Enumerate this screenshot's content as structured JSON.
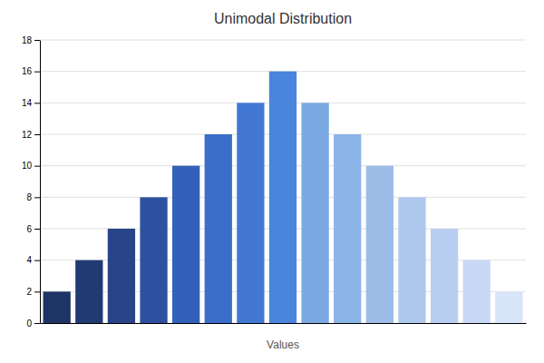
{
  "chart_data": {
    "type": "bar",
    "title": "Unimodal Distribution",
    "xlabel": "Values",
    "values": [
      2,
      4,
      6,
      8,
      10,
      12,
      14,
      16,
      14,
      12,
      10,
      8,
      6,
      4,
      2
    ],
    "colors": [
      "#1e3464",
      "#223a73",
      "#284587",
      "#2d519e",
      "#3360b8",
      "#3a6ec8",
      "#4278d4",
      "#4a84dc",
      "#7aa8e0",
      "#8ab4e8",
      "#9cbde8",
      "#aec8ee",
      "#b8cef0",
      "#c8d8f4",
      "#d8e4f8"
    ],
    "ylim": [
      0,
      18
    ],
    "yticks": [
      0,
      2,
      4,
      6,
      8,
      10,
      12,
      14,
      16,
      18
    ],
    "grid": true,
    "tick_labels": "y"
  }
}
